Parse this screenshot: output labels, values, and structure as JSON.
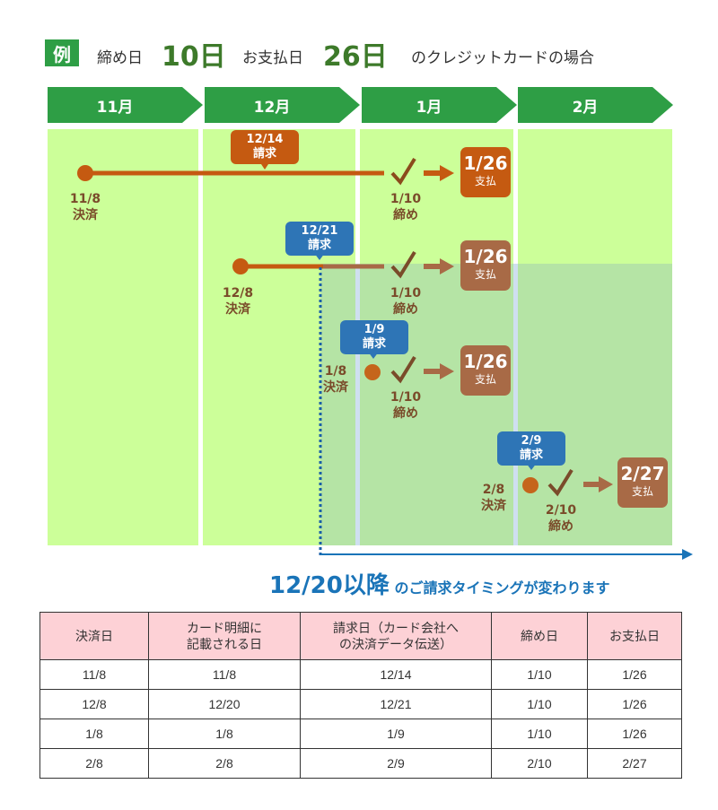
{
  "header": {
    "badge": "例",
    "close_label": "締め日",
    "close_value": "10日",
    "pay_label": "お支払日",
    "pay_value": "26日",
    "suffix": "のクレジットカードの場合"
  },
  "months": [
    "11月",
    "12月",
    "1月",
    "2月"
  ],
  "rows": [
    {
      "settle": "11/8",
      "settle_label": "決済",
      "request": "12/14",
      "request_label": "請求",
      "close": "1/10",
      "close_label": "締め",
      "pay": "1/26",
      "pay_label": "支払"
    },
    {
      "settle": "12/8",
      "settle_label": "決済",
      "request": "12/21",
      "request_label": "請求",
      "close": "1/10",
      "close_label": "締め",
      "pay": "1/26",
      "pay_label": "支払"
    },
    {
      "settle": "1/8",
      "settle_label": "決済",
      "request": "1/9",
      "request_label": "請求",
      "close": "1/10",
      "close_label": "締め",
      "pay": "1/26",
      "pay_label": "支払"
    },
    {
      "settle": "2/8",
      "settle_label": "決済",
      "request": "2/9",
      "request_label": "請求",
      "close": "2/10",
      "close_label": "締め",
      "pay": "2/27",
      "pay_label": "支払"
    }
  ],
  "note": {
    "big": "12/20以降",
    "small": "のご請求タイミングが変わります"
  },
  "colors": {
    "green_dark": "#2e9e45",
    "cell_green": "#ccff99",
    "overlay_green": "#b5e4a5",
    "orange": "#c55a11",
    "brown": "#a86a46",
    "blue": "#2e75b6"
  },
  "table": {
    "headers": [
      "決済日",
      "カード明細に\n記載される日",
      "請求日（カード会社へ\nの決済データ伝送）",
      "締め日",
      "お支払日"
    ],
    "rows": [
      [
        "11/8",
        "11/8",
        "12/14",
        "1/10",
        "1/26"
      ],
      [
        "12/8",
        "12/20",
        "12/21",
        "1/10",
        "1/26"
      ],
      [
        "1/8",
        "1/8",
        "1/9",
        "1/10",
        "1/26"
      ],
      [
        "2/8",
        "2/8",
        "2/9",
        "2/10",
        "2/27"
      ]
    ]
  }
}
